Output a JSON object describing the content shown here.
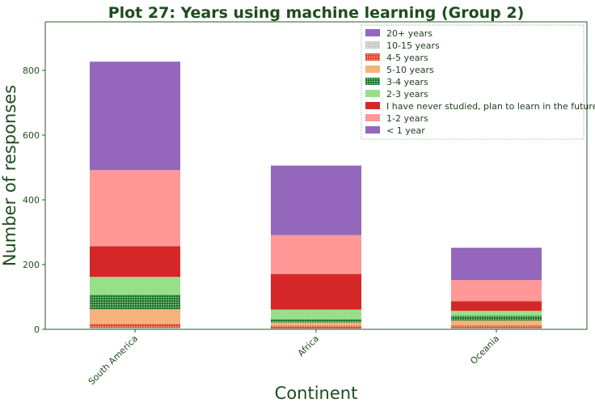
{
  "chart_data": {
    "type": "bar",
    "stacked": true,
    "title": "Plot 27: Years using machine learning (Group 2)",
    "xlabel": "Continent",
    "ylabel": "Number of responses",
    "categories": [
      "South America",
      "Africa",
      "Oceania"
    ],
    "ylim": [
      0,
      950
    ],
    "yticks": [
      0,
      200,
      400,
      600,
      800
    ],
    "grid": false,
    "legend_position": "top-right",
    "series": [
      {
        "name": "20+ years",
        "color": "#9467bd",
        "pattern": "none",
        "values": [
          0,
          0,
          0
        ]
      },
      {
        "name": "10-15 years",
        "color": "#c7c7c7",
        "pattern": "dots",
        "values": [
          5,
          3,
          4
        ]
      },
      {
        "name": "4-5 years",
        "color": "#e0402a",
        "pattern": "dots",
        "values": [
          12,
          8,
          8
        ]
      },
      {
        "name": "5-10 years",
        "color": "#f5b27a",
        "pattern": "none",
        "values": [
          45,
          10,
          15
        ]
      },
      {
        "name": "3-4 years",
        "color": "#1f7a2a",
        "pattern": "dots",
        "values": [
          45,
          10,
          15
        ]
      },
      {
        "name": "2-3 years",
        "color": "#98df8a",
        "pattern": "none",
        "values": [
          55,
          30,
          15
        ]
      },
      {
        "name": "I have never studied, plan to learn in the future",
        "color": "#d62728",
        "pattern": "none",
        "values": [
          95,
          110,
          30
        ]
      },
      {
        "name": "1-2 years",
        "color": "#ff9896",
        "pattern": "none",
        "values": [
          235,
          120,
          65
        ]
      },
      {
        "name": "< 1 year",
        "color": "#9467bd",
        "pattern": "none",
        "values": [
          335,
          215,
          100
        ]
      }
    ]
  }
}
